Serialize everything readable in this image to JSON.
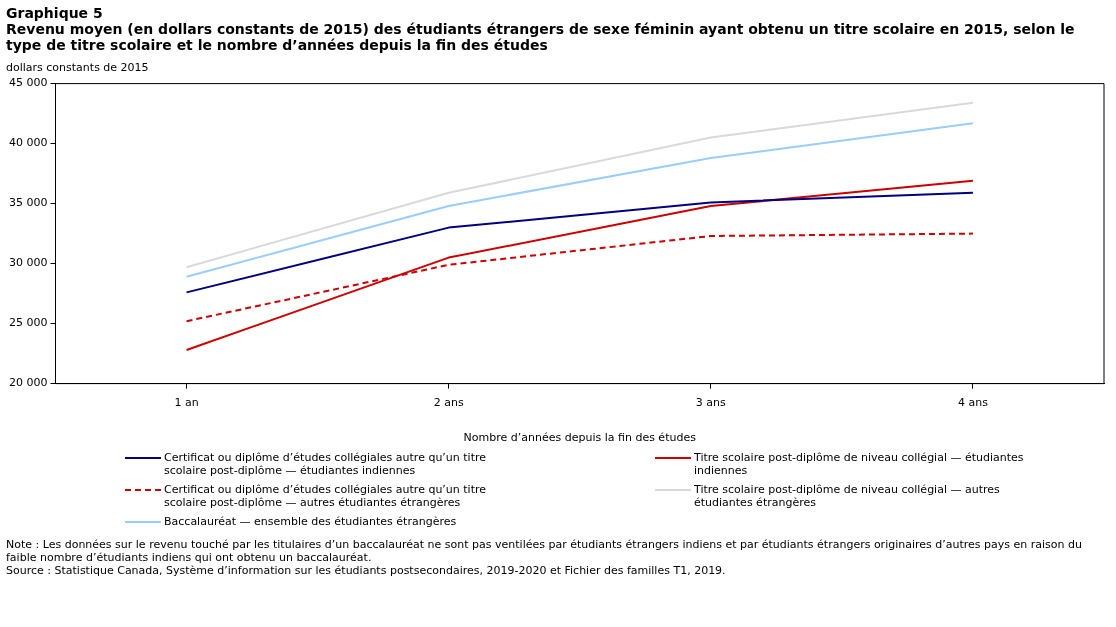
{
  "chart_data": {
    "type": "line",
    "title": "Graphique 5",
    "subtitle": "Revenu moyen (en dollars constants de 2015) des étudiants étrangers de sexe féminin ayant obtenu un titre scolaire en 2015, selon le type de titre scolaire et le nombre d’années depuis la fin des études",
    "ylabel": "dollars constants de 2015",
    "xlabel": "Nombre d’années depuis la fin des études",
    "categories": [
      "1 an",
      "2 ans",
      "3 ans",
      "4 ans"
    ],
    "series": [
      {
        "name": "Certificat ou diplôme d’études collégiales autre qu’un titre scolaire post-diplôme — étudiantes indiennes",
        "color": "#000080",
        "values": [
          27600,
          33000,
          35100,
          35900
        ]
      },
      {
        "name": "Titre scolaire post-diplôme de niveau collégial — étudiantes indiennes",
        "color": "#cc0000",
        "values": [
          22800,
          30500,
          34800,
          36900
        ]
      },
      {
        "name": "Certificat ou diplôme d’études collégiales autre qu’un titre scolaire post-diplôme — autres étudiantes étrangères",
        "color": "#cc0000",
        "line_style": "dashed",
        "values": [
          25200,
          29900,
          32300,
          32500
        ]
      },
      {
        "name": "Titre scolaire post-diplôme de niveau collégial — autres étudiantes étrangères",
        "color": "#d9d9d9",
        "values": [
          29700,
          35900,
          40500,
          43400
        ]
      },
      {
        "name": "Baccalauréat — ensemble des étudiantes étrangères",
        "color": "#99ccff",
        "values": [
          28900,
          34800,
          38800,
          41700
        ]
      }
    ],
    "ylim": [
      20000,
      45000
    ],
    "yticks": [
      {
        "value": 20000,
        "label": "20 000"
      },
      {
        "value": 25000,
        "label": "25 000"
      },
      {
        "value": 30000,
        "label": "30 000"
      },
      {
        "value": 35000,
        "label": "35 000"
      },
      {
        "value": 40000,
        "label": "40 000"
      },
      {
        "value": 45000,
        "label": "45 000"
      }
    ],
    "grid": false,
    "legend": "bottom",
    "marker": "none",
    "line_style": "solid",
    "annotations": [
      "Note : Les données sur le revenu touché par les titulaires d’un baccalauréat ne sont pas ventilées par étudiants étrangers indiens et par étudiants étrangers originaires d’autres pays en raison du faible nombre d’étudiants indiens qui ont obtenu un baccalauréat.",
      "Source : Statistique Canada, Système d’information sur les étudiants postsecondaires, 2019-2020 et Fichier des familles T1, 2019."
    ]
  }
}
